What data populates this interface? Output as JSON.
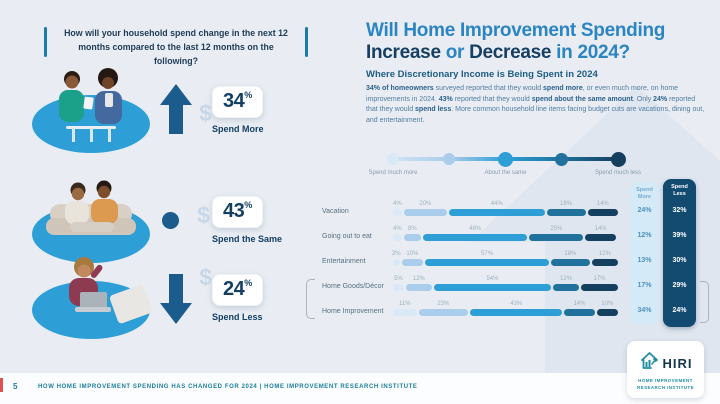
{
  "colors": {
    "background": "#e9edf3",
    "title_blue": "#2b85c4",
    "title_navy": "#173f63",
    "teal_accent": "#1a7f9e",
    "arrow_navy": "#1c5c8c",
    "photo_oval_blue": "#2e9fd6"
  },
  "left_panel": {
    "question": "How will your household spend change in the next 12 months compared to the last 12 months on the following?",
    "stats": [
      {
        "value": "34",
        "unit": "%",
        "label": "Spend More",
        "direction": "up",
        "photo": "couple-shopping"
      },
      {
        "value": "43",
        "unit": "%",
        "label": "Spend the Same",
        "direction": "same",
        "photo": "couple-on-couch"
      },
      {
        "value": "24",
        "unit": "%",
        "label": "Spend Less",
        "direction": "down",
        "photo": "woman-at-laptop"
      }
    ]
  },
  "header": {
    "title_lines": [
      [
        {
          "text": "Will Home Improvement Spending",
          "style": "blue"
        }
      ],
      [
        {
          "text": "Increase",
          "style": "navy"
        },
        {
          "text": " or ",
          "style": "blue"
        },
        {
          "text": "Decrease",
          "style": "navy"
        },
        {
          "text": " in 2024?",
          "style": "blue"
        }
      ]
    ],
    "subtitle": "Where Discretionary Income is Being Spent in 2024",
    "paragraph_runs": [
      {
        "text": "34% of homeowners",
        "bold": true
      },
      {
        "text": " surveyed reported that they would ",
        "bold": false
      },
      {
        "text": "spend more",
        "bold": true
      },
      {
        "text": ", or even much more, on home improvements in 2024. ",
        "bold": false
      },
      {
        "text": "43%",
        "bold": true
      },
      {
        "text": " reported that they would ",
        "bold": false
      },
      {
        "text": "spend about the same amount",
        "bold": true
      },
      {
        "text": ". Only ",
        "bold": false
      },
      {
        "text": "24%",
        "bold": true
      },
      {
        "text": " reported that they would ",
        "bold": false
      },
      {
        "text": "spend less",
        "bold": true
      },
      {
        "text": ". More common household line items facing budget cuts are vacations, dining out, and entertainment.",
        "bold": false
      }
    ]
  },
  "chart_data": {
    "type": "bar",
    "stacked": true,
    "orientation": "horizontal",
    "title": "Where Discretionary Income is Being Spent in 2024",
    "unit": "%",
    "xlim": [
      0,
      100
    ],
    "categories": [
      "Vacation",
      "Going out to eat",
      "Entertainment",
      "Home Goods/Décor",
      "Home Improvement"
    ],
    "series": [
      {
        "name": "Spend much more",
        "values": [
          4,
          4,
          3,
          5,
          11
        ]
      },
      {
        "name": "Spend more",
        "values": [
          20,
          8,
          10,
          12,
          23
        ]
      },
      {
        "name": "About the same",
        "values": [
          44,
          48,
          57,
          54,
          43
        ]
      },
      {
        "name": "Spend less",
        "values": [
          18,
          25,
          18,
          12,
          14
        ]
      },
      {
        "name": "Spend much less",
        "values": [
          14,
          14,
          12,
          17,
          10
        ]
      }
    ],
    "segment_colors": [
      "#d9e9f6",
      "#a9cdeb",
      "#2d9fd6",
      "#20719b",
      "#153f5f"
    ],
    "legend": {
      "labels": [
        "Spend much more",
        "About the same",
        "Spend much less"
      ],
      "position": "top"
    },
    "summary_columns": {
      "more": {
        "header": "Spend More",
        "values": [
          "24%",
          "12%",
          "13%",
          "17%",
          "34%"
        ]
      },
      "less": {
        "header": "Spend Less",
        "values": [
          "32%",
          "39%",
          "30%",
          "29%",
          "24%"
        ]
      }
    },
    "bracketed_categories": [
      "Home Goods/Décor",
      "Home Improvement"
    ]
  },
  "footer": {
    "page": "5",
    "text": "HOW HOME IMPROVEMENT SPENDING HAS CHANGED FOR 2024  |  HOME IMPROVEMENT RESEARCH INSTITUTE"
  },
  "logo": {
    "name": "HIRI",
    "sub_line1": "HOME IMPROVEMENT",
    "sub_line2": "RESEARCH INSTITUTE"
  }
}
